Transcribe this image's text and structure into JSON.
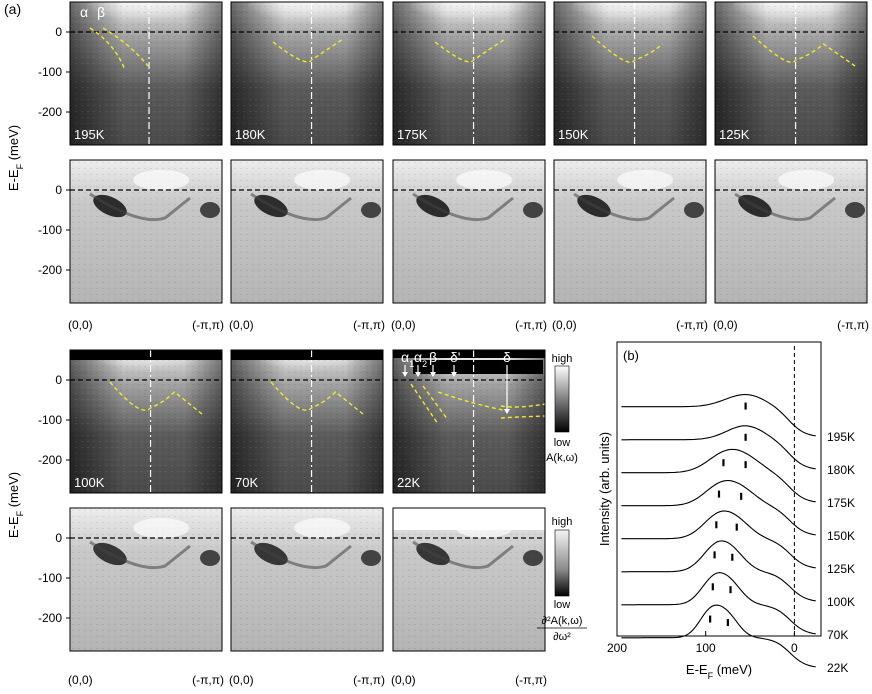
{
  "figure": {
    "panel_a_label": "(a)",
    "panel_b_label": "(b)",
    "y_axis_label": "E-E",
    "y_axis_sub": "F",
    "y_axis_unit": " (meV)",
    "y_ticks": [
      "0",
      "-100",
      "-200"
    ],
    "k_start_label": "(0,0)",
    "k_end_label": "(-π,π)",
    "top_row_temps": [
      "195K",
      "180K",
      "175K",
      "150K",
      "125K"
    ],
    "bottom_row_temps": [
      "100K",
      "70K",
      "22K"
    ],
    "band_labels_top": [
      "α",
      "β"
    ],
    "band_labels_22k": [
      "α",
      "α",
      "β",
      "δ'",
      "δ"
    ],
    "band_label_subs": [
      "1",
      "2"
    ],
    "colorbar_spectral": {
      "high": "high",
      "low": "low",
      "quantity": "A(k,ω)"
    },
    "colorbar_second_derivative": {
      "high": "high",
      "low": "low",
      "quantity_num": "∂²A(k,ω)",
      "quantity_den": "∂ω²"
    }
  },
  "chart_data": {
    "type": "line",
    "title": "",
    "xlabel": "E-E_F (meV)",
    "ylabel": "Intensity (arb. units)",
    "x_ticks": [
      "200",
      "100",
      "0"
    ],
    "xlim": [
      200,
      -30
    ],
    "series_labels": [
      "195K",
      "180K",
      "175K",
      "150K",
      "125K",
      "100K",
      "70K",
      "22K"
    ],
    "peak_energies_meV": [
      {
        "temp": "195K",
        "peaks": [
          55
        ]
      },
      {
        "temp": "180K",
        "peaks": [
          55
        ]
      },
      {
        "temp": "175K",
        "peaks": [
          80,
          55
        ]
      },
      {
        "temp": "150K",
        "peaks": [
          85,
          60
        ]
      },
      {
        "temp": "125K",
        "peaks": [
          88,
          65
        ]
      },
      {
        "temp": "100K",
        "peaks": [
          90,
          70
        ]
      },
      {
        "temp": "70K",
        "peaks": [
          92,
          72
        ]
      },
      {
        "temp": "22K",
        "peaks": [
          95,
          75
        ]
      }
    ],
    "fermi_level_marker_meV": 0
  }
}
